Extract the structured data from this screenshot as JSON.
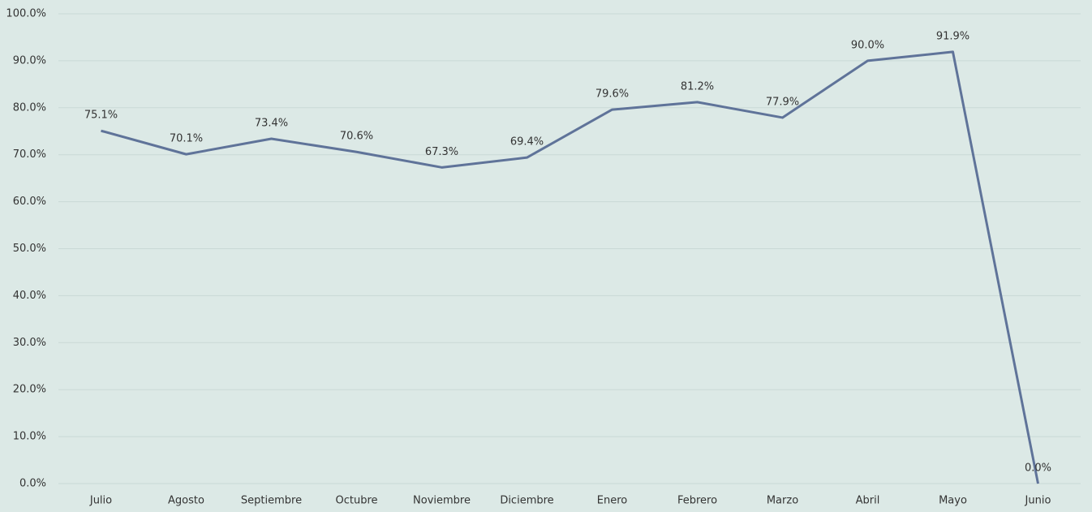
{
  "chart_data": {
    "type": "line",
    "categories": [
      "Julio",
      "Agosto",
      "Septiembre",
      "Octubre",
      "Noviembre",
      "Diciembre",
      "Enero",
      "Febrero",
      "Marzo",
      "Abril",
      "Mayo",
      "Junio"
    ],
    "series": [
      {
        "color": "#5f7399",
        "values": [
          75.1,
          70.1,
          73.4,
          70.6,
          67.3,
          69.4,
          79.6,
          81.2,
          77.9,
          90.0,
          91.9,
          0.0
        ],
        "value_labels": [
          "75.1%",
          "70.1%",
          "73.4%",
          "70.6%",
          "67.3%",
          "69.4%",
          "79.6%",
          "81.2%",
          "77.9%",
          "90.0%",
          "91.9%",
          "0.0%"
        ]
      }
    ],
    "ylim": [
      0,
      100
    ],
    "yticks": [
      {
        "value": 0,
        "label": "0.0%"
      },
      {
        "value": 10,
        "label": "10.0%"
      },
      {
        "value": 20,
        "label": "20.0%"
      },
      {
        "value": 30,
        "label": "30.0%"
      },
      {
        "value": 40,
        "label": "40.0%"
      },
      {
        "value": 50,
        "label": "50.0%"
      },
      {
        "value": 60,
        "label": "60.0%"
      },
      {
        "value": 70,
        "label": "70.0%"
      },
      {
        "value": 80,
        "label": "80.0%"
      },
      {
        "value": 90,
        "label": "90.0%"
      },
      {
        "value": 100,
        "label": "100.0%"
      }
    ],
    "grid": true
  }
}
